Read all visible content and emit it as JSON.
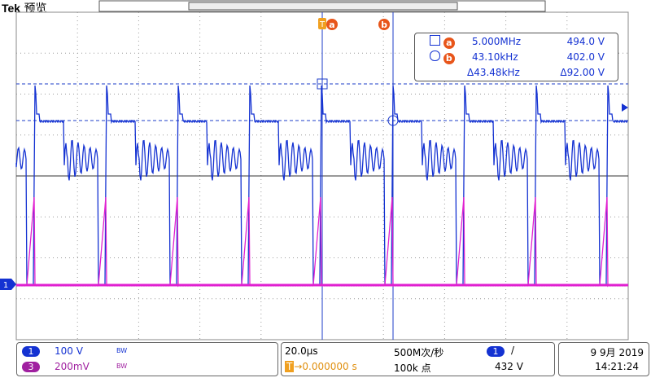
{
  "header": {
    "brand": "Tek",
    "mode": "预览"
  },
  "cursor_labels": {
    "a": "a",
    "b": "b"
  },
  "readout": {
    "a_freq": "5.000MHz",
    "a_volt": "494.0 V",
    "b_freq": "43.10kHz",
    "b_volt": "402.0 V",
    "delta_freq": "Δ43.48kHz",
    "delta_volt": "Δ92.00 V"
  },
  "markers": {
    "ch1": "1",
    "trigger": "T"
  },
  "channels": [
    {
      "number": "1",
      "scale": "100 V",
      "bw": "BW"
    },
    {
      "number": "3",
      "scale": "200mV",
      "bw": "BW"
    }
  ],
  "timebase": {
    "scale": "20.0µs",
    "trigger_position": "0.000000 s",
    "sample_rate": "500M次/秒",
    "record_length": "100k 点"
  },
  "trigger": {
    "source": "1",
    "slope": "/",
    "level": "432 V"
  },
  "datetime": {
    "date": "9 9月 2019",
    "time": "14:21:24"
  }
}
